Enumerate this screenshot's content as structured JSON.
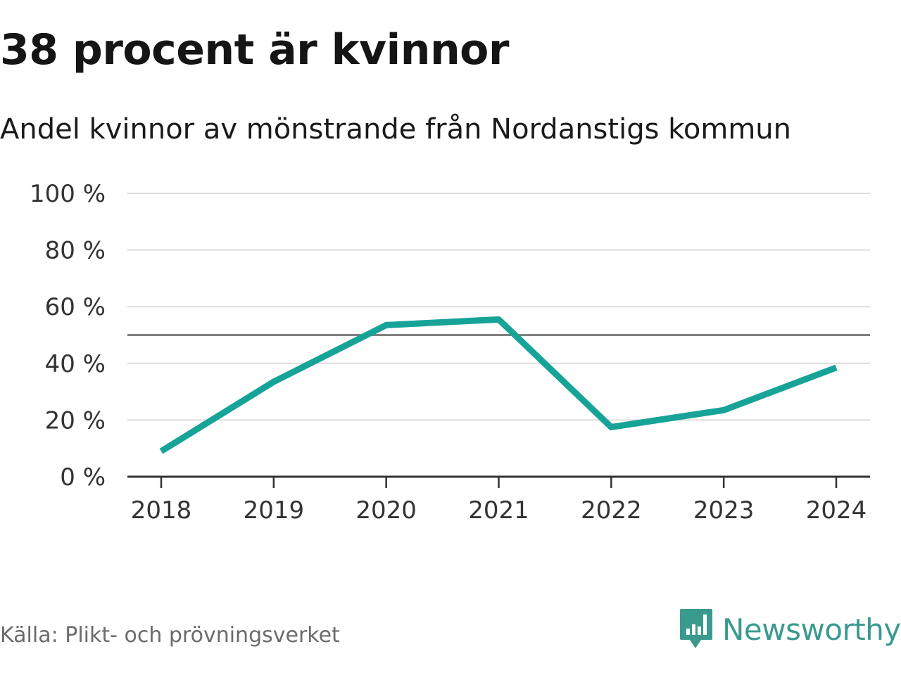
{
  "chart_data": {
    "type": "line",
    "title": "38 procent är kvinnor",
    "subtitle": "Andel kvinnor av mönstrande från Nordanstigs kommun",
    "categories": [
      "2018",
      "2019",
      "2020",
      "2021",
      "2022",
      "2023",
      "2024"
    ],
    "series": [
      {
        "name": "Andel kvinnor",
        "values": [
          9,
          33.5,
          53.5,
          55.5,
          17.5,
          23.5,
          38.5
        ],
        "color": "#17a398"
      }
    ],
    "ylim": [
      0,
      100
    ],
    "yticks": [
      0,
      20,
      40,
      60,
      80,
      100
    ],
    "ytick_labels": [
      "0 %",
      "20 %",
      "40 %",
      "60 %",
      "80 %",
      "100 %"
    ],
    "reference_line": 50,
    "grid": true,
    "xlabel": "",
    "ylabel": ""
  },
  "footer": {
    "source": "Källa: Plikt- och prövningsverket",
    "brand": "Newsworthy"
  },
  "colors": {
    "line": "#17a398",
    "grid": "#dddddd",
    "reference": "#666666",
    "brand": "#3a9a8e"
  }
}
